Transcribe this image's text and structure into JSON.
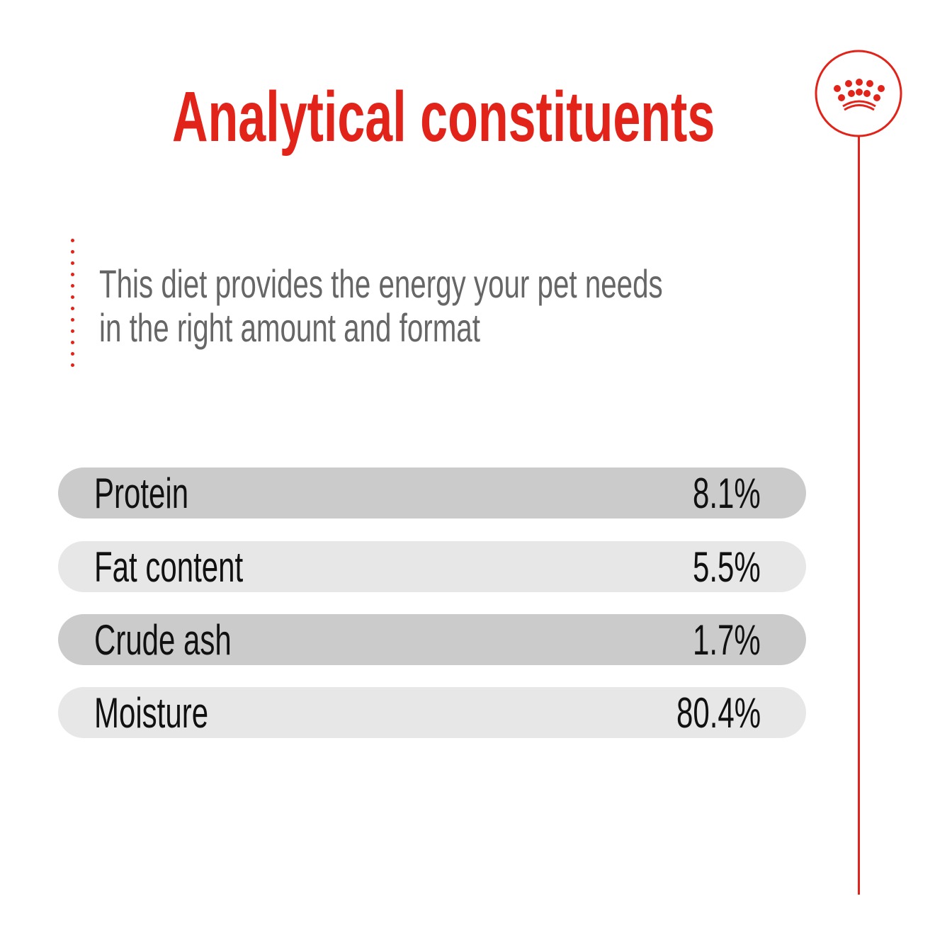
{
  "title": "Analytical constituents",
  "description": [
    "This diet provides the energy your pet needs",
    "in the right amount and format"
  ],
  "logo": {
    "icon": "crown-icon",
    "color": "#e2231a"
  },
  "accent_color": "#e2231a",
  "constituents": [
    {
      "label": "Protein",
      "value": "8.1%"
    },
    {
      "label": "Fat content",
      "value": "5.5%"
    },
    {
      "label": "Crude ash",
      "value": "1.7%"
    },
    {
      "label": "Moisture",
      "value": "80.4%"
    }
  ]
}
